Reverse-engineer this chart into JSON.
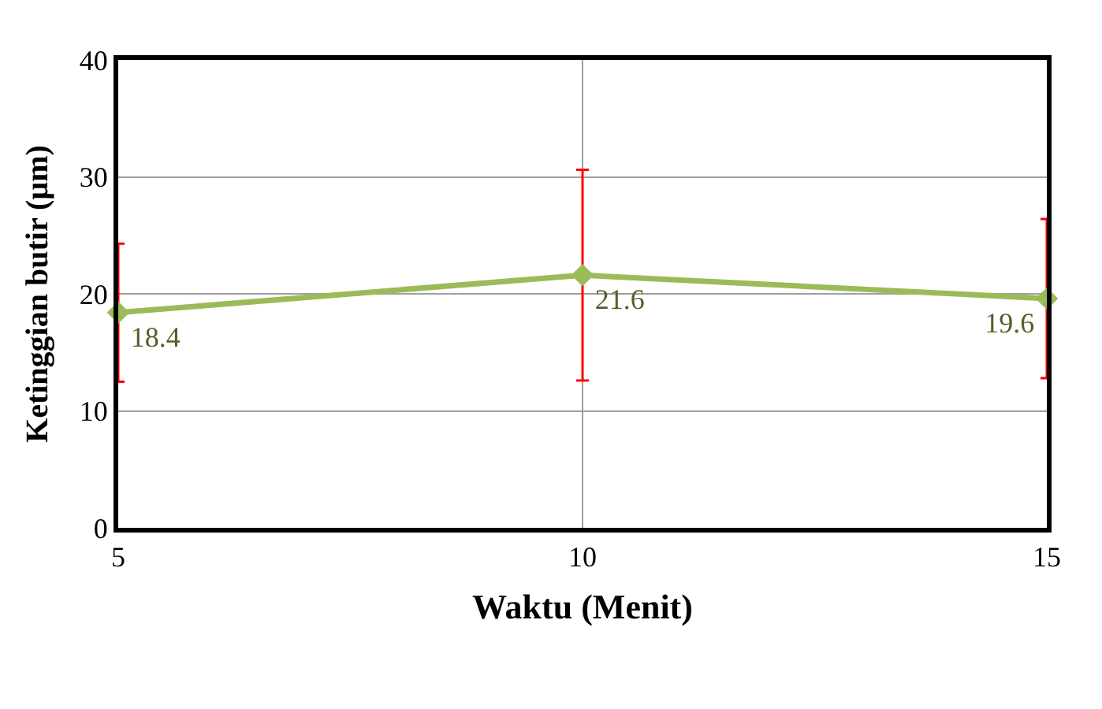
{
  "chart_data": {
    "type": "line",
    "xlabel": "Waktu (Menit)",
    "ylabel": "Ketinggian butir (µm)",
    "x": [
      5,
      10,
      15
    ],
    "series": [
      {
        "color": "#9bbb59",
        "values": [
          18.4,
          21.6,
          19.6
        ],
        "errors": [
          5.9,
          9.0,
          6.8
        ]
      }
    ],
    "xlim": [
      5,
      15
    ],
    "xticks": [
      5,
      10,
      15
    ],
    "ylim": [
      0,
      40
    ],
    "yticks": [
      0,
      10,
      20,
      30,
      40
    ],
    "grid": true,
    "legend": false,
    "marker": "diamond",
    "line_style": "solid",
    "data_labels": true
  }
}
